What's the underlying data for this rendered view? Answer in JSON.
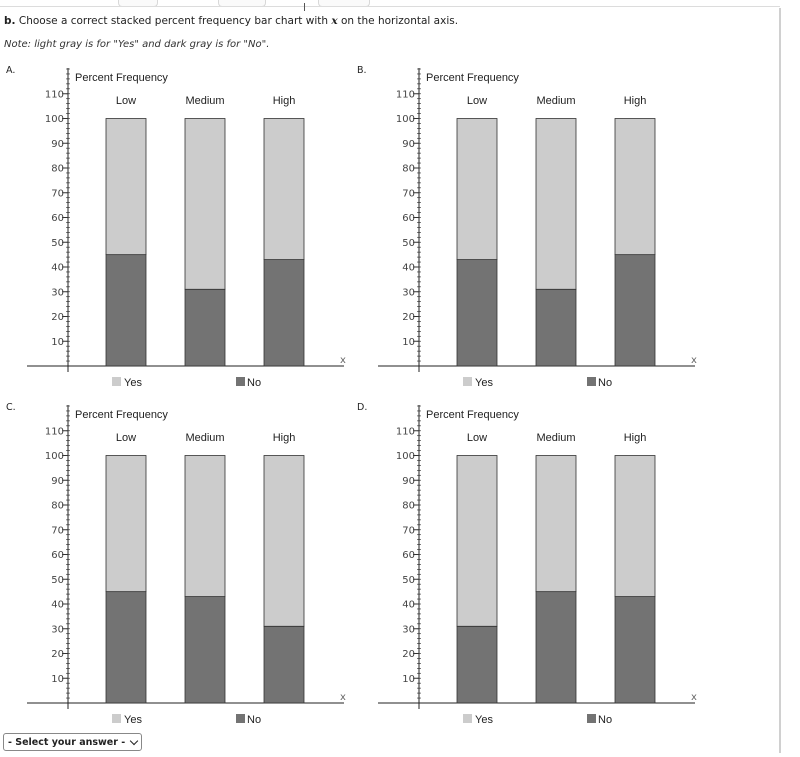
{
  "question": {
    "part": "b.",
    "text_before": "Choose a correct stacked percent frequency bar chart with",
    "variable": "x",
    "text_after": "on the horizontal axis.",
    "note": "Note: light gray is for \"Yes\" and dark gray is for \"No\"."
  },
  "colors": {
    "yes": "#cccccc",
    "no": "#737373",
    "axis": "#222222"
  },
  "select": {
    "label": "- Select your answer -"
  },
  "chart_data": [
    {
      "type": "bar",
      "option": "A.",
      "title": "Percent  Frequency",
      "categories": [
        "Low",
        "Medium",
        "High"
      ],
      "series": [
        {
          "name": "No",
          "values": [
            45,
            31,
            43
          ]
        },
        {
          "name": "Yes",
          "values": [
            55,
            69,
            57
          ]
        }
      ],
      "yticks": [
        "10",
        "20",
        "30",
        "40",
        "50",
        "60",
        "70",
        "80",
        "90",
        "100",
        "110"
      ],
      "ylim": [
        0,
        110
      ],
      "xlabel": "x",
      "legend": [
        "Yes",
        "No"
      ]
    },
    {
      "type": "bar",
      "option": "B.",
      "title": "Percent  Frequency",
      "categories": [
        "Low",
        "Medium",
        "High"
      ],
      "series": [
        {
          "name": "No",
          "values": [
            43,
            31,
            45
          ]
        },
        {
          "name": "Yes",
          "values": [
            57,
            69,
            55
          ]
        }
      ],
      "yticks": [
        "10",
        "20",
        "30",
        "40",
        "50",
        "60",
        "70",
        "80",
        "90",
        "100",
        "110"
      ],
      "ylim": [
        0,
        110
      ],
      "xlabel": "x",
      "legend": [
        "Yes",
        "No"
      ]
    },
    {
      "type": "bar",
      "option": "C.",
      "title": "Percent  Frequency",
      "categories": [
        "Low",
        "Medium",
        "High"
      ],
      "series": [
        {
          "name": "No",
          "values": [
            45,
            43,
            31
          ]
        },
        {
          "name": "Yes",
          "values": [
            55,
            57,
            69
          ]
        }
      ],
      "yticks": [
        "10",
        "20",
        "30",
        "40",
        "50",
        "60",
        "70",
        "80",
        "90",
        "100",
        "110"
      ],
      "ylim": [
        0,
        110
      ],
      "xlabel": "x",
      "legend": [
        "Yes",
        "No"
      ]
    },
    {
      "type": "bar",
      "option": "D.",
      "title": "Percent  Frequency",
      "categories": [
        "Low",
        "Medium",
        "High"
      ],
      "series": [
        {
          "name": "No",
          "values": [
            31,
            45,
            43
          ]
        },
        {
          "name": "Yes",
          "values": [
            69,
            55,
            57
          ]
        }
      ],
      "yticks": [
        "10",
        "20",
        "30",
        "40",
        "50",
        "60",
        "70",
        "80",
        "90",
        "100",
        "110"
      ],
      "ylim": [
        0,
        110
      ],
      "xlabel": "x",
      "legend": [
        "Yes",
        "No"
      ]
    }
  ]
}
